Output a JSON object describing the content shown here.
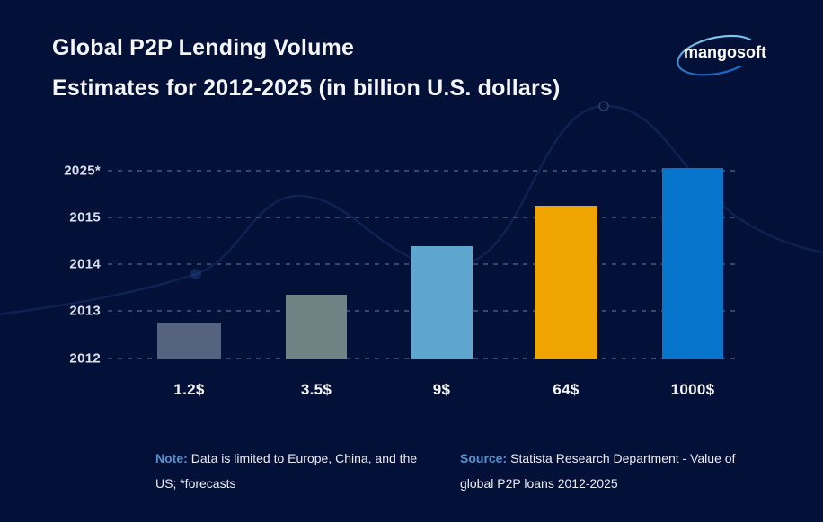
{
  "title": {
    "line1": "Global P2P Lending Volume",
    "line2": "Estimates for 2012-2025 (in billion U.S. dollars)"
  },
  "logo": {
    "text": "mangosoft"
  },
  "chart_data": {
    "type": "bar",
    "title": "Global P2P Lending Volume Estimates for 2012-2025 (in billion U.S. dollars)",
    "categories": [
      "2012",
      "2013",
      "2014",
      "2015",
      "2025*"
    ],
    "values": [
      1.2,
      3.5,
      9,
      64,
      1000
    ],
    "value_labels": [
      "1.2$",
      "3.5$",
      "9$",
      "64$",
      "1000$"
    ],
    "unit": "billion U.S. dollars",
    "y_axis_ticks": [
      "2025*",
      "2015",
      "2014",
      "2013",
      "2012"
    ],
    "bar_colors": [
      "#556380",
      "#6f8284",
      "#5fa6cf",
      "#efa400",
      "#0875cc"
    ],
    "grid": "horizontal-dashed",
    "legend": "none",
    "note": "Data is limited to Europe, China, and the US; *forecasts",
    "source": "Statista Research Department - Value of global P2P loans 2012-2025"
  },
  "footer": {
    "note_label": "Note:",
    "note_text": "Data is limited to Europe, China, and the US; *forecasts",
    "source_label": "Source:",
    "source_text": "Statista Research Department - Value of global P2P loans 2012-2025"
  },
  "colors": {
    "background": "#031139",
    "title_text": "#f4f6fb",
    "axis_text": "#dce1ee",
    "accent_label": "#5591cc",
    "logo_swirl_top": "#8fdcf6",
    "logo_swirl_bottom": "#1a66c4"
  }
}
